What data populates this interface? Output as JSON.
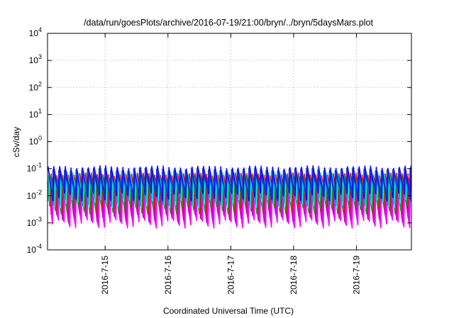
{
  "chart_data": {
    "type": "line",
    "title": "/data/run/goesPlots/archive/2016-07-19/21:00/bryn/../bryn/5daysMars.plot",
    "xlabel": "Coordinated Universal Time (UTC)",
    "ylabel": "cSv/day",
    "yscale": "log",
    "ylim": [
      0.0001,
      10000
    ],
    "xlim": [
      "2016-07-14 02:00",
      "2016-07-19 21:00"
    ],
    "grid": true,
    "y_ticks": [
      {
        "base": "10",
        "exp": "-4"
      },
      {
        "base": "10",
        "exp": "-3"
      },
      {
        "base": "10",
        "exp": "-2"
      },
      {
        "base": "10",
        "exp": "-1"
      },
      {
        "base": "10",
        "exp": "0"
      },
      {
        "base": "10",
        "exp": "1"
      },
      {
        "base": "10",
        "exp": "2"
      },
      {
        "base": "10",
        "exp": "3"
      },
      {
        "base": "10",
        "exp": "4"
      }
    ],
    "x_ticks": [
      "2016-7-15",
      "2016-7-16",
      "2016-7-17",
      "2016-7-18",
      "2016-7-19"
    ],
    "sawtooth_period_hours": 2.2,
    "series": [
      {
        "color": "#ff00ff",
        "peak": 0.03,
        "trough": 0.0009
      },
      {
        "color": "#ff00ff",
        "peak": 0.022,
        "trough": 0.0012
      },
      {
        "color": "#cc00cc",
        "peak": 0.04,
        "trough": 0.0015
      },
      {
        "color": "#ff0000",
        "peak": 0.06,
        "trough": 0.003
      },
      {
        "color": "#00aa00",
        "peak": 0.05,
        "trough": 0.003
      },
      {
        "color": "#00ffff",
        "peak": 0.065,
        "trough": 0.005
      },
      {
        "color": "#00aaaa",
        "peak": 0.055,
        "trough": 0.006
      },
      {
        "color": "#0000ff",
        "peak": 0.11,
        "trough": 0.009
      },
      {
        "color": "#2233cc",
        "peak": 0.09,
        "trough": 0.012
      }
    ]
  }
}
